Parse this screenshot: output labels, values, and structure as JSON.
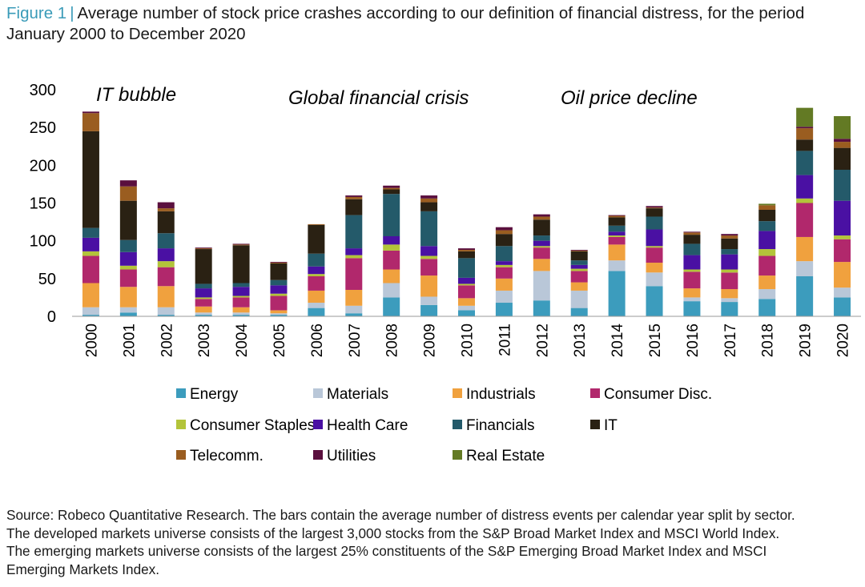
{
  "caption": {
    "figure_label": "Figure  1",
    "separator": "|",
    "line1": "Average number of stock price crashes according to our definition of financial distress, for the period",
    "line2": "January 2000 to December 2020"
  },
  "colors": {
    "Energy": "#3c9cbd",
    "Materials": "#b9c7d8",
    "Industrials": "#f0a13e",
    "Consumer Disc.": "#b1286c",
    "Consumer Staples": "#b3c43a",
    "Health Care": "#4a10a3",
    "Financials": "#245a6a",
    "IT": "#2a2113",
    "Telecomm.": "#9a5d20",
    "Utilities": "#5a0f3e",
    "Real Estate": "#637a24"
  },
  "chart_data": {
    "type": "bar",
    "stacked": true,
    "title": "Average number of stock price crashes according to our definition of financial distress, for the period January 2000 to December 2020",
    "xlabel": "",
    "ylabel": "",
    "ylim": [
      0,
      300
    ],
    "yticks": [
      0,
      50,
      100,
      150,
      200,
      250,
      300
    ],
    "categories": [
      "2000",
      "2001",
      "2002",
      "2003",
      "2004",
      "2005",
      "2006",
      "2007",
      "2008",
      "2009",
      "2010",
      "2011",
      "2012",
      "2013",
      "2014",
      "2015",
      "2016",
      "2017",
      "2018",
      "2019",
      "2020"
    ],
    "series": [
      {
        "name": "Energy",
        "values": [
          2,
          5,
          2,
          2,
          2,
          2,
          11,
          4,
          25,
          15,
          8,
          18,
          21,
          11,
          60,
          40,
          20,
          19,
          23,
          53,
          25
        ]
      },
      {
        "name": "Materials",
        "values": [
          10,
          7,
          10,
          3,
          3,
          2,
          7,
          10,
          19,
          11,
          6,
          16,
          39,
          23,
          14,
          18,
          5,
          5,
          13,
          20,
          13
        ]
      },
      {
        "name": "Industrials",
        "values": [
          32,
          27,
          28,
          8,
          7,
          4,
          16,
          21,
          18,
          28,
          10,
          16,
          16,
          11,
          21,
          13,
          12,
          12,
          18,
          32,
          34
        ]
      },
      {
        "name": "Consumer Disc.",
        "values": [
          36,
          23,
          25,
          10,
          13,
          19,
          19,
          42,
          25,
          22,
          17,
          15,
          15,
          15,
          10,
          20,
          22,
          22,
          26,
          45,
          30
        ]
      },
      {
        "name": "Consumer Staples",
        "values": [
          6,
          5,
          8,
          2,
          2,
          3,
          3,
          4,
          8,
          4,
          2,
          3,
          2,
          3,
          2,
          2,
          3,
          4,
          9,
          6,
          5
        ]
      },
      {
        "name": "Health Care",
        "values": [
          18,
          18,
          17,
          12,
          12,
          11,
          10,
          9,
          11,
          13,
          8,
          5,
          7,
          5,
          5,
          22,
          19,
          20,
          24,
          31,
          46
        ]
      },
      {
        "name": "Financials",
        "values": [
          13,
          16,
          20,
          6,
          5,
          7,
          17,
          44,
          56,
          46,
          26,
          20,
          7,
          6,
          8,
          17,
          15,
          7,
          13,
          32,
          41
        ]
      },
      {
        "name": "IT",
        "values": [
          128,
          52,
          29,
          46,
          50,
          22,
          38,
          21,
          6,
          12,
          9,
          16,
          21,
          12,
          11,
          11,
          12,
          14,
          15,
          15,
          29
        ]
      },
      {
        "name": "Telecomm.",
        "values": [
          24,
          19,
          4,
          1,
          1,
          1,
          1,
          3,
          2,
          5,
          2,
          5,
          4,
          1,
          2,
          1,
          3,
          4,
          6,
          15,
          8
        ]
      },
      {
        "name": "Utilities",
        "values": [
          2,
          8,
          8,
          1,
          1,
          1,
          0,
          2,
          3,
          4,
          2,
          4,
          3,
          1,
          1,
          2,
          1,
          2,
          0,
          2,
          4
        ]
      },
      {
        "name": "Real Estate",
        "values": [
          0,
          0,
          0,
          0,
          0,
          0,
          0,
          0,
          0,
          0,
          0,
          0,
          0,
          0,
          0,
          0,
          0,
          0,
          2,
          25,
          30
        ]
      }
    ],
    "annotations": [
      {
        "text": "IT bubble",
        "x": "2000"
      },
      {
        "text": "Global financial crisis",
        "x": "2008"
      },
      {
        "text": "Oil price decline",
        "x": "2015"
      }
    ],
    "legend": [
      "Energy",
      "Materials",
      "Industrials",
      "Consumer Disc.",
      "Consumer Staples",
      "Health Care",
      "Financials",
      "IT",
      "Telecomm.",
      "Utilities",
      "Real Estate"
    ],
    "legend_position": "bottom"
  },
  "source": {
    "line1": "Source: Robeco Quantitative Research. The bars contain the average number of distress events per calendar year split by sector.",
    "line2": "The developed markets universe consists of the largest 3,000 stocks from the S&P Broad Market Index and MSCI World Index.",
    "line3": "The emerging markets universe consists of the largest 25% constituents of the S&P Emerging Broad Market Index and MSCI",
    "line4": "Emerging Markets Index."
  }
}
